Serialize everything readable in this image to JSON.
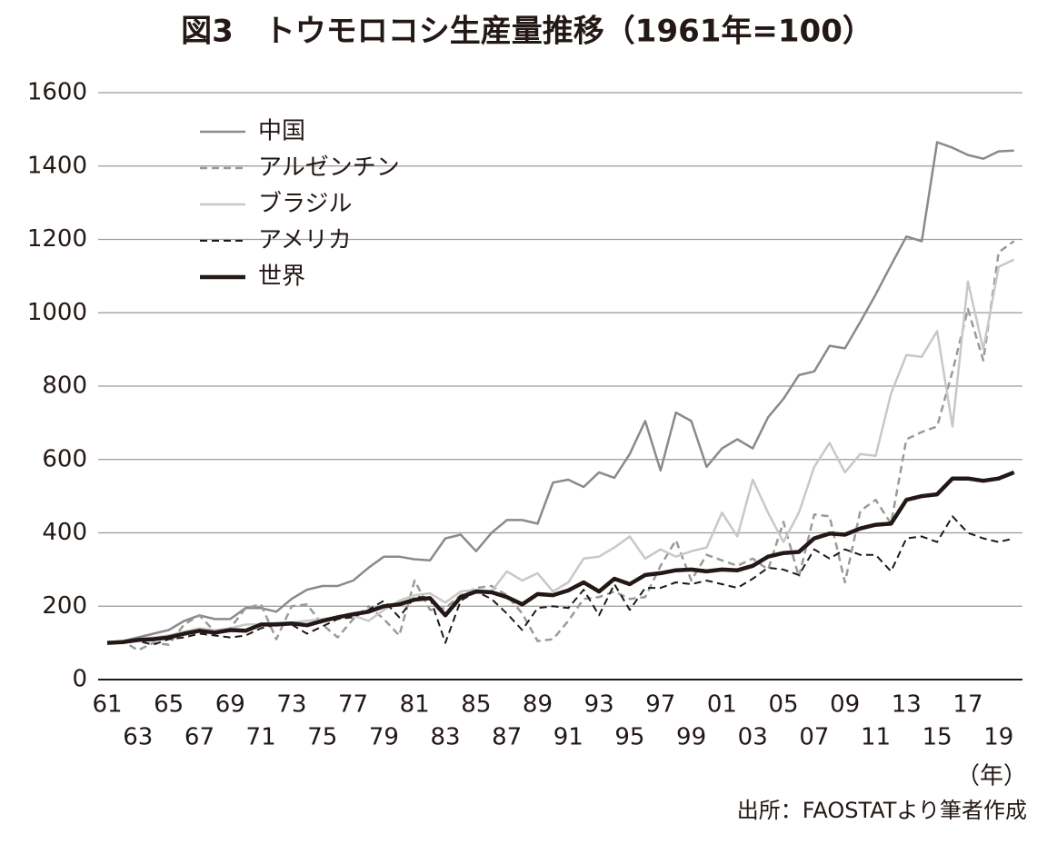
{
  "chart_data": {
    "type": "line",
    "title": "図3　トウモロコシ生産量推移（1961年=100）",
    "x_unit": "（年）",
    "source": "出所：FAOSTATより筆者作成",
    "categories": [
      "61",
      null,
      "63",
      null,
      "65",
      null,
      "67",
      null,
      "69",
      null,
      "71",
      null,
      "73",
      null,
      "75",
      null,
      "77",
      null,
      "79",
      null,
      "81",
      null,
      "83",
      null,
      "85",
      null,
      "87",
      null,
      "89",
      null,
      "91",
      null,
      "93",
      null,
      "95",
      null,
      "97",
      null,
      "99",
      null,
      "01",
      null,
      "03",
      null,
      "05",
      null,
      "07",
      null,
      "09",
      null,
      "11",
      null,
      "13",
      null,
      "15",
      null,
      "17",
      null,
      "19",
      null
    ],
    "ylim": [
      0,
      1600
    ],
    "yticks": [
      0,
      200,
      400,
      600,
      800,
      1000,
      1200,
      1400,
      1600
    ],
    "grid": true,
    "legend": "upper left",
    "series": [
      {
        "name": "中国",
        "color": "#8a8a8a",
        "dash": false,
        "width": 2.5,
        "values": [
          100,
          105,
          115,
          125,
          135,
          160,
          175,
          165,
          165,
          195,
          195,
          185,
          220,
          245,
          255,
          255,
          270,
          305,
          335,
          335,
          328,
          325,
          385,
          395,
          350,
          400,
          435,
          435,
          425,
          537,
          545,
          525,
          565,
          550,
          615,
          705,
          570,
          728,
          705,
          580,
          630,
          655,
          630,
          715,
          765,
          830,
          840,
          910,
          903,
          975,
          1050,
          1130,
          1208,
          1195,
          1465,
          1450,
          1430,
          1420,
          1440,
          1442
        ]
      },
      {
        "name": "アルゼンチン",
        "color": "#9a9a9a",
        "dash": true,
        "width": 2.5,
        "values": [
          100,
          105,
          80,
          100,
          95,
          150,
          175,
          130,
          140,
          195,
          205,
          110,
          200,
          205,
          150,
          115,
          165,
          200,
          165,
          120,
          270,
          190,
          195,
          230,
          250,
          255,
          230,
          180,
          105,
          110,
          160,
          220,
          225,
          240,
          220,
          225,
          310,
          380,
          270,
          340,
          325,
          310,
          330,
          300,
          430,
          280,
          450,
          445,
          265,
          460,
          490,
          425,
          655,
          675,
          690,
          840,
          1010,
          870,
          1165,
          1195
        ]
      },
      {
        "name": "ブラジル",
        "color": "#c8c8c8",
        "dash": false,
        "width": 2.5,
        "values": [
          100,
          105,
          110,
          115,
          120,
          130,
          140,
          135,
          140,
          150,
          150,
          155,
          155,
          160,
          165,
          170,
          175,
          160,
          190,
          215,
          230,
          235,
          210,
          240,
          245,
          240,
          295,
          270,
          290,
          240,
          265,
          330,
          335,
          360,
          390,
          330,
          355,
          335,
          350,
          360,
          455,
          390,
          545,
          455,
          375,
          455,
          580,
          645,
          565,
          615,
          610,
          780,
          885,
          880,
          950,
          690,
          1085,
          900,
          1125,
          1145
        ]
      },
      {
        "name": "アメリカ",
        "color": "#1a1a1a",
        "dash": true,
        "width": 2,
        "values": [
          100,
          100,
          105,
          95,
          110,
          115,
          125,
          120,
          115,
          120,
          140,
          150,
          150,
          125,
          145,
          165,
          170,
          190,
          215,
          170,
          225,
          225,
          100,
          215,
          240,
          220,
          180,
          135,
          195,
          200,
          195,
          245,
          175,
          260,
          190,
          250,
          250,
          265,
          260,
          270,
          260,
          250,
          275,
          305,
          300,
          285,
          355,
          330,
          355,
          340,
          340,
          295,
          385,
          390,
          375,
          445,
          400,
          385,
          375,
          385
        ]
      },
      {
        "name": "世界",
        "color": "#231815",
        "dash": false,
        "width": 4.5,
        "values": [
          100,
          102,
          108,
          110,
          115,
          125,
          133,
          128,
          135,
          133,
          150,
          150,
          153,
          148,
          160,
          170,
          178,
          185,
          200,
          205,
          218,
          222,
          175,
          225,
          240,
          238,
          225,
          205,
          233,
          230,
          243,
          265,
          240,
          275,
          260,
          285,
          290,
          298,
          300,
          295,
          300,
          298,
          310,
          335,
          345,
          348,
          385,
          398,
          395,
          412,
          422,
          425,
          490,
          500,
          505,
          548,
          548,
          542,
          548,
          565
        ]
      }
    ]
  }
}
